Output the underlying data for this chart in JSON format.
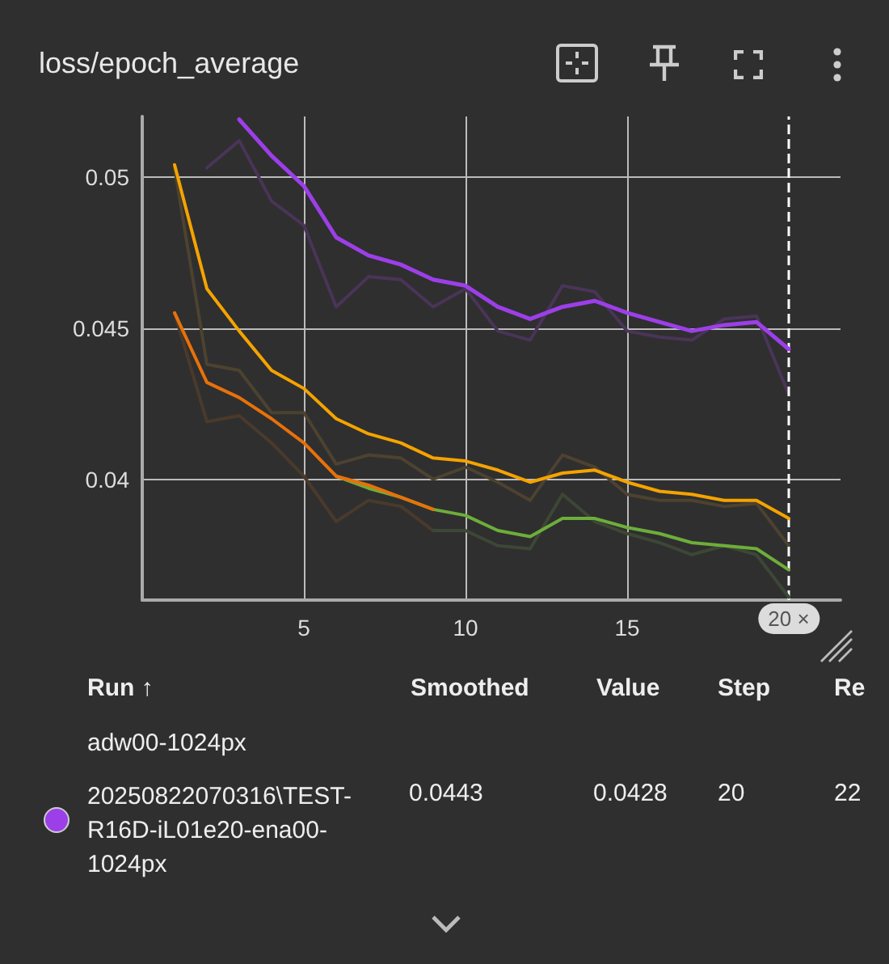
{
  "chart_data": {
    "type": "line",
    "title": "loss/epoch_average",
    "x": [
      1,
      2,
      3,
      4,
      5,
      6,
      7,
      8,
      9,
      10,
      11,
      12,
      13,
      14,
      15,
      16,
      17,
      18,
      19,
      20
    ],
    "xlim": [
      0,
      21.6
    ],
    "xticks": [
      5,
      10,
      15
    ],
    "ylim": [
      0.036,
      0.052
    ],
    "yticks": [
      0.04,
      0.045,
      0.05
    ],
    "grid": true,
    "marker": "none",
    "line_style": "solid",
    "legend": "bottom",
    "series": [
      {
        "color": "#4a3458",
        "values": [
          null,
          0.0503,
          0.0512,
          0.0492,
          0.0484,
          0.0457,
          0.0467,
          0.0466,
          0.0457,
          0.0463,
          0.0449,
          0.0446,
          0.0464,
          0.0462,
          0.0449,
          0.0447,
          0.0446,
          0.0453,
          0.0454,
          0.0428
        ]
      },
      {
        "color": "#4d4230",
        "values": [
          0.0503,
          0.0438,
          0.0436,
          0.0422,
          0.0422,
          0.0405,
          0.0408,
          0.0407,
          0.04,
          0.0404,
          0.0399,
          0.0393,
          0.0408,
          0.0404,
          0.0395,
          0.0393,
          0.0393,
          0.0391,
          0.0392,
          0.0378
        ]
      },
      {
        "color": "#4a3a2c",
        "values": [
          0.0455,
          0.0419,
          0.0421,
          0.0412,
          0.0401,
          0.0386,
          0.0393,
          0.0391,
          0.0383,
          null,
          null,
          null,
          null,
          null,
          null,
          null,
          null,
          null,
          null,
          null
        ]
      },
      {
        "color": "#3d4735",
        "values": [
          null,
          null,
          null,
          null,
          null,
          null,
          null,
          null,
          0.0383,
          0.0383,
          0.0378,
          0.0377,
          0.0395,
          0.0386,
          0.0382,
          0.0379,
          0.0375,
          0.0378,
          0.0375,
          0.0361
        ]
      },
      {
        "color": "#6dae3a",
        "values": [
          null,
          null,
          null,
          null,
          null,
          0.0401,
          0.0397,
          0.0394,
          0.039,
          0.0388,
          0.0383,
          0.0381,
          0.0387,
          0.0387,
          0.0384,
          0.0382,
          0.0379,
          0.0378,
          0.0377,
          0.037
        ]
      },
      {
        "color": "#e8710a",
        "values": [
          0.0455,
          0.0432,
          0.0427,
          0.042,
          0.0412,
          0.0401,
          0.0398,
          0.0394,
          0.039,
          null,
          null,
          null,
          null,
          null,
          null,
          null,
          null,
          null,
          null,
          null
        ]
      },
      {
        "color": "#f5a300",
        "values": [
          0.0504,
          0.0463,
          0.0449,
          0.0436,
          0.043,
          0.042,
          0.0415,
          0.0412,
          0.0407,
          0.0406,
          0.0403,
          0.0399,
          0.0402,
          0.0403,
          0.0399,
          0.0396,
          0.0395,
          0.0393,
          0.0393,
          0.0387
        ]
      },
      {
        "name": "20250822070316\\TEST-R16D-iL01e20-ena00-1024px",
        "color": "#9c3fe8",
        "values": [
          null,
          null,
          0.0519,
          0.0507,
          0.0497,
          0.048,
          0.0474,
          0.0471,
          0.0466,
          0.0464,
          0.0457,
          0.0453,
          0.0457,
          0.0459,
          0.0455,
          0.0452,
          0.0449,
          0.0451,
          0.0452,
          0.0443
        ]
      }
    ],
    "ref_lines": [
      {
        "axis": "x",
        "value": 20,
        "label": "20 ×",
        "color": "#ffffff",
        "line_style": "dashed"
      }
    ],
    "annotations": [
      "Run ↑",
      "Smoothed",
      "Value",
      "Step",
      "Re",
      "adw00-1024px",
      "0.0443",
      "0.0428",
      "20",
      "22"
    ]
  }
}
